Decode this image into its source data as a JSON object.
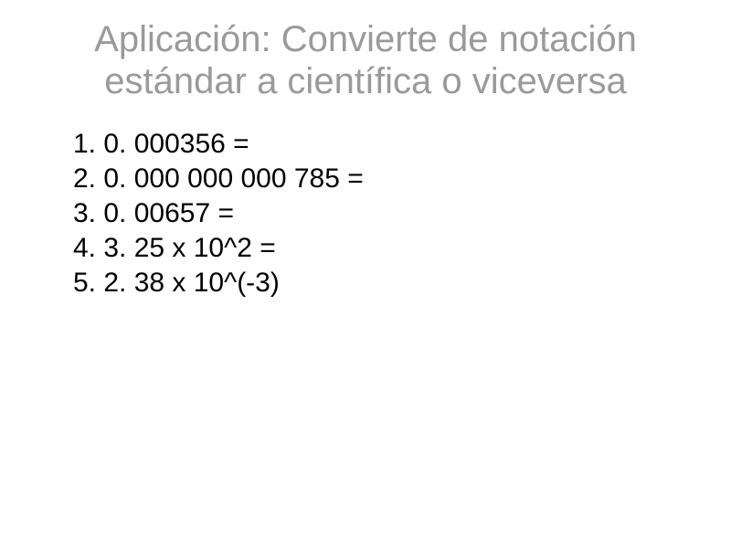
{
  "slide": {
    "title": "Aplicación: Convierte de notación estándar a científica o viceversa",
    "title_color": "#9a9a9a",
    "title_fontsize": 40,
    "content_color": "#000000",
    "content_fontsize": 30,
    "background_color": "#ffffff",
    "items": [
      "1. 0. 000356 =",
      "2. 0. 000 000 000 785 =",
      "3. 0. 00657 =",
      "4. 3. 25 x 10^2 =",
      "5. 2. 38 x 10^(-3)"
    ]
  }
}
